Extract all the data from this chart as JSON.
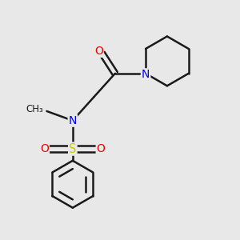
{
  "background_color": "#e8e8e8",
  "bond_color": "#1a1a1a",
  "N_color": "#0000ee",
  "O_color": "#ee0000",
  "S_color": "#cccc00",
  "bond_width": 1.8,
  "figsize": [
    3.0,
    3.0
  ],
  "dpi": 100,
  "xlim": [
    0,
    10
  ],
  "ylim": [
    0,
    10
  ],
  "methyl_label": "CH₃",
  "N_label": "N",
  "O_label": "O",
  "S_label": "S"
}
